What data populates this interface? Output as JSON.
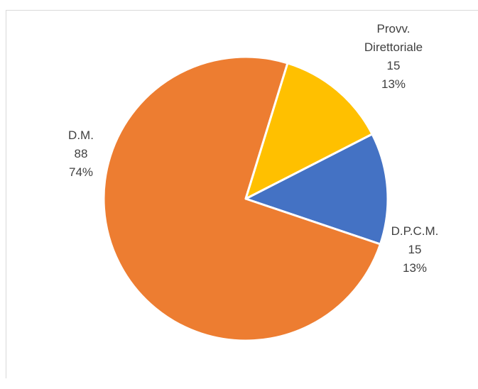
{
  "chart_data": {
    "type": "pie",
    "title": "",
    "legend": "none",
    "slices": [
      {
        "label_lines": [
          "D.P.C.M."
        ],
        "value": 15,
        "percent": "13%",
        "color": "#4472c4"
      },
      {
        "label_lines": [
          "D.M."
        ],
        "value": 88,
        "percent": "74%",
        "color": "#ed7d31"
      },
      {
        "label_lines": [
          "Provv.",
          "Direttoriale"
        ],
        "value": 15,
        "percent": "13%",
        "color": "#ffc000"
      }
    ]
  }
}
